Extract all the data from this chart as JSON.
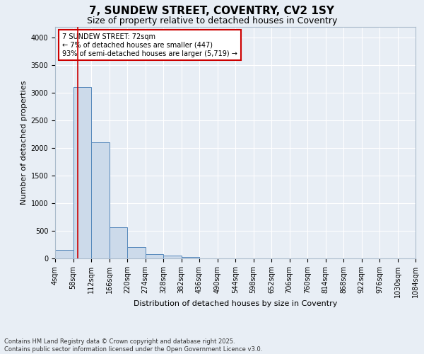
{
  "title": "7, SUNDEW STREET, COVENTRY, CV2 1SY",
  "subtitle": "Size of property relative to detached houses in Coventry",
  "xlabel": "Distribution of detached houses by size in Coventry",
  "ylabel": "Number of detached properties",
  "bin_edges": [
    4,
    58,
    112,
    166,
    220,
    274,
    328,
    382,
    436,
    490,
    544,
    598,
    652,
    706,
    760,
    814,
    868,
    922,
    976,
    1030,
    1084
  ],
  "bar_heights": [
    150,
    3100,
    2100,
    570,
    210,
    80,
    50,
    30,
    5,
    0,
    0,
    0,
    0,
    0,
    0,
    0,
    0,
    0,
    0,
    0
  ],
  "bar_color": "#ccdaea",
  "bar_edgecolor": "#5588bb",
  "ylim": [
    0,
    4200
  ],
  "yticks": [
    0,
    500,
    1000,
    1500,
    2000,
    2500,
    3000,
    3500,
    4000
  ],
  "property_size": 72,
  "vline_color": "#cc0000",
  "annotation_text": "7 SUNDEW STREET: 72sqm\n← 7% of detached houses are smaller (447)\n93% of semi-detached houses are larger (5,719) →",
  "annotation_box_color": "#cc0000",
  "footnote_line1": "Contains HM Land Registry data © Crown copyright and database right 2025.",
  "footnote_line2": "Contains public sector information licensed under the Open Government Licence v3.0.",
  "bg_color": "#e8eef5",
  "plot_bg_color": "#e8eef5",
  "grid_color": "#ffffff",
  "title_fontsize": 11,
  "subtitle_fontsize": 9,
  "label_fontsize": 8,
  "tick_fontsize": 7,
  "annot_fontsize": 7,
  "footnote_fontsize": 6
}
